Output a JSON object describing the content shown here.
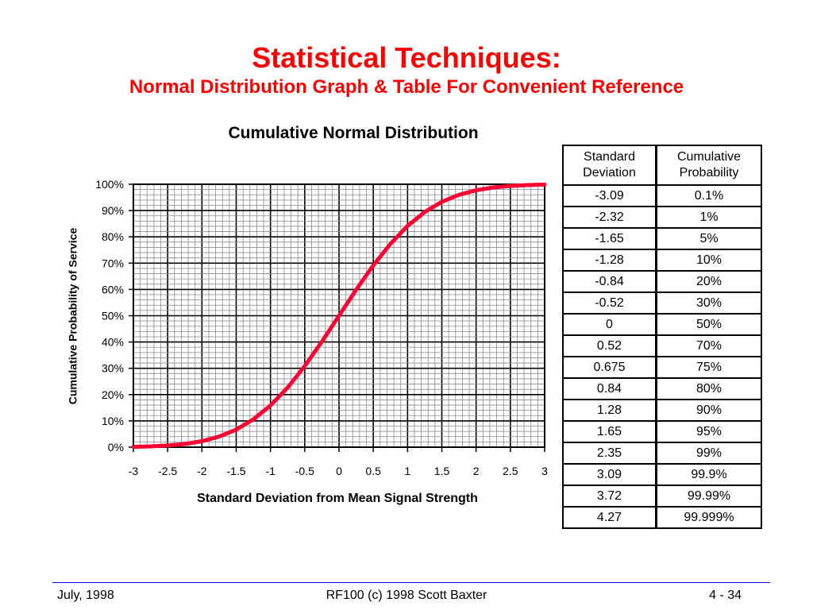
{
  "slide": {
    "title": "Statistical Techniques:",
    "subtitle": "Normal Distribution Graph & Table For Convenient Reference"
  },
  "chart_data": {
    "type": "line",
    "title": "Cumulative Normal Distribution",
    "xlabel": "Standard Deviation from Mean Signal Strength",
    "ylabel": "Cumulative Probability of Service",
    "xlim": [
      -3,
      3
    ],
    "ylim": [
      0,
      1
    ],
    "x_ticks": [
      "-3",
      "-2.5",
      "-2",
      "-1.5",
      "-1",
      "-0.5",
      "0",
      "0.5",
      "1",
      "1.5",
      "2",
      "2.5",
      "3"
    ],
    "y_ticks": [
      "0%",
      "10%",
      "20%",
      "30%",
      "40%",
      "50%",
      "60%",
      "70%",
      "80%",
      "90%",
      "100%"
    ],
    "grid": true,
    "line_color": "#ff0033",
    "series": [
      {
        "x": [
          -3,
          -2.75,
          -2.5,
          -2.25,
          -2,
          -1.75,
          -1.5,
          -1.25,
          -1,
          -0.75,
          -0.5,
          -0.25,
          0,
          0.25,
          0.5,
          0.75,
          1,
          1.25,
          1.5,
          1.75,
          2,
          2.25,
          2.5,
          2.75,
          3
        ],
        "y": [
          0.0013,
          0.003,
          0.0062,
          0.0122,
          0.0228,
          0.0401,
          0.0668,
          0.1056,
          0.1587,
          0.2266,
          0.3085,
          0.4013,
          0.5,
          0.5987,
          0.6915,
          0.7734,
          0.8413,
          0.8944,
          0.9332,
          0.9599,
          0.9772,
          0.9878,
          0.9938,
          0.997,
          0.9987
        ]
      }
    ]
  },
  "table": {
    "header": [
      "Standard\nDeviation",
      "Cumulative\nProbability"
    ],
    "rows": [
      [
        "-3.09",
        "0.1%"
      ],
      [
        "-2.32",
        "1%"
      ],
      [
        "-1.65",
        "5%"
      ],
      [
        "-1.28",
        "10%"
      ],
      [
        "-0.84",
        "20%"
      ],
      [
        "-0.52",
        "30%"
      ],
      [
        "0",
        "50%"
      ],
      [
        "0.52",
        "70%"
      ],
      [
        "0.675",
        "75%"
      ],
      [
        "0.84",
        "80%"
      ],
      [
        "1.28",
        "90%"
      ],
      [
        "1.65",
        "95%"
      ],
      [
        "2.35",
        "99%"
      ],
      [
        "3.09",
        "99.9%"
      ],
      [
        "3.72",
        "99.99%"
      ],
      [
        "4.27",
        "99.999%"
      ]
    ]
  },
  "footer": {
    "date": "July, 1998",
    "center": "RF100 (c) 1998 Scott Baxter",
    "page": "4 - 34"
  },
  "colors": {
    "title": "#ff0000",
    "footer_rule": "#0000ff",
    "curve": "#ff0033"
  }
}
